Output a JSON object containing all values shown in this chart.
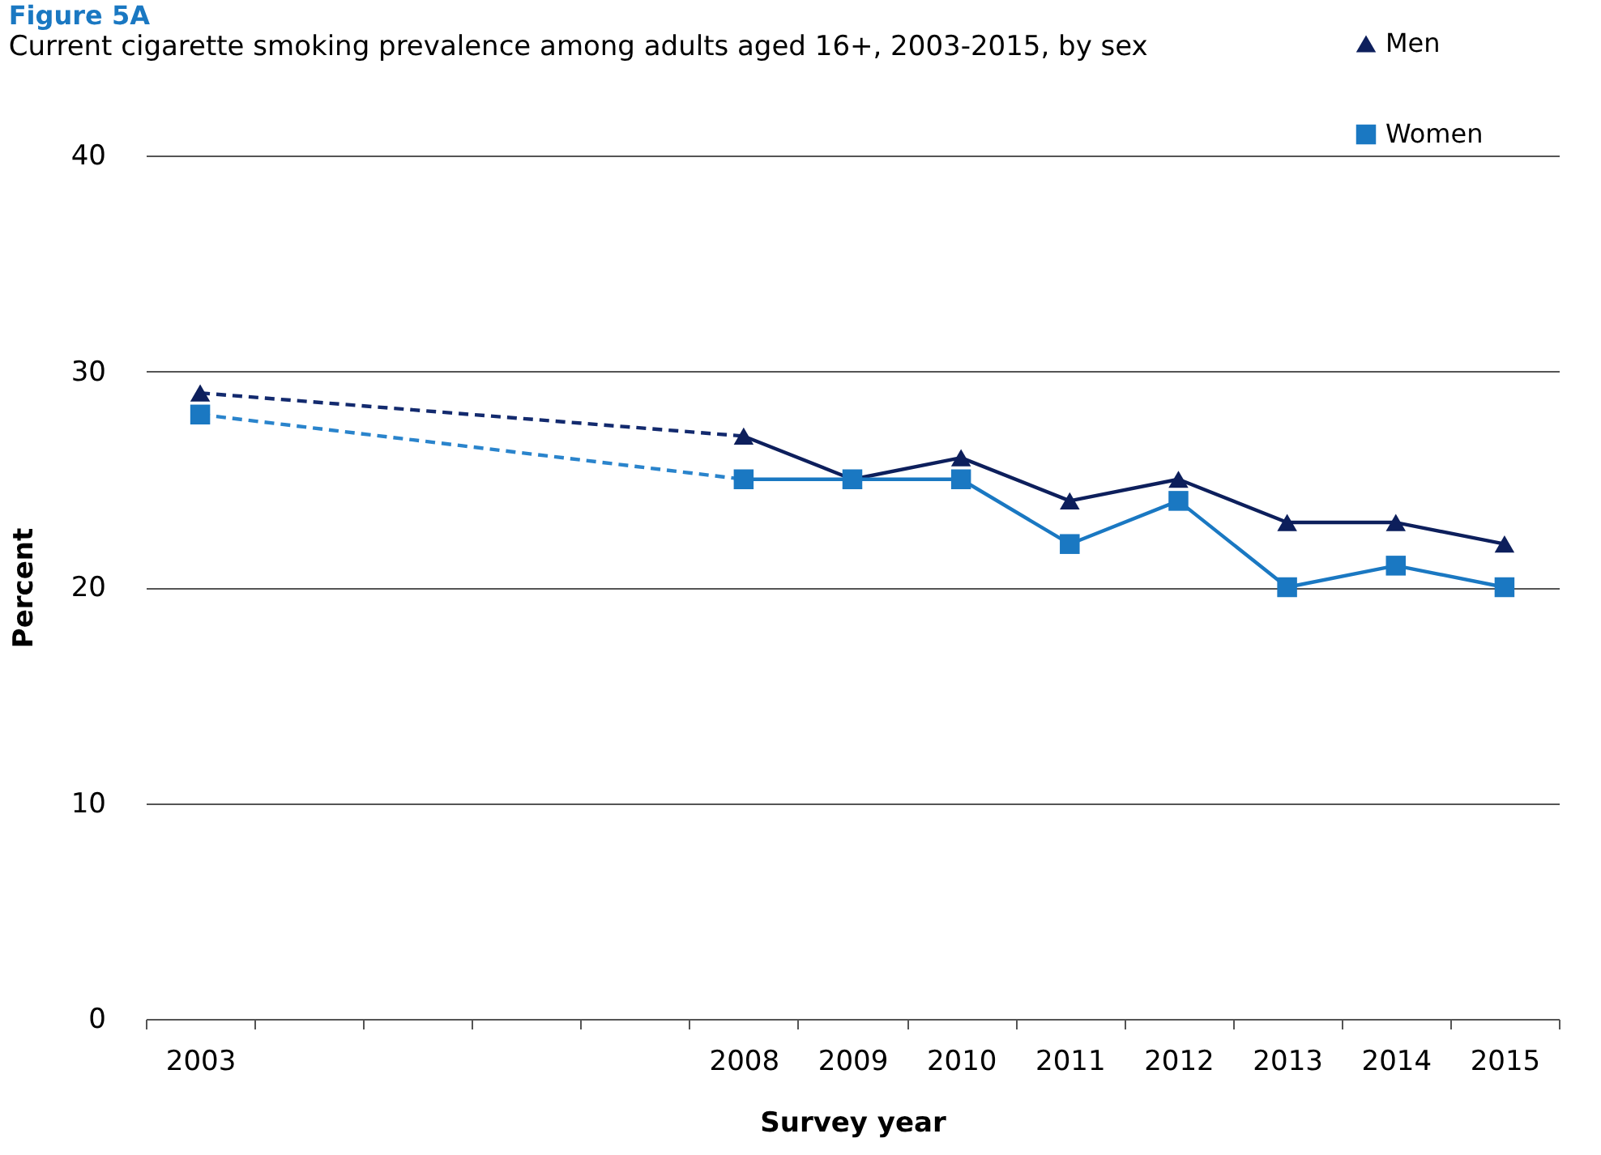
{
  "chart_data": {
    "type": "line",
    "title": "Figure 5A",
    "subtitle": "Current cigarette smoking prevalence among adults aged 16+, 2003-2015, by sex",
    "xlabel": "Survey year",
    "ylabel": "Percent",
    "categories": [
      "2003",
      null,
      null,
      null,
      null,
      "2008",
      "2009",
      "2010",
      "2011",
      "2012",
      "2013",
      "2014",
      "2015"
    ],
    "series": [
      {
        "name": "Men",
        "color": "#0d1f5c",
        "marker": "triangle",
        "line_style": "solid",
        "values": [
          29,
          null,
          null,
          null,
          null,
          27,
          25,
          26,
          24,
          25,
          23,
          23,
          22
        ]
      },
      {
        "name": "Women",
        "color": "#1a78c2",
        "marker": "square",
        "line_style": "solid",
        "values": [
          28,
          null,
          null,
          null,
          null,
          25,
          25,
          25,
          22,
          24,
          20,
          21,
          20
        ]
      },
      {
        "color": "#132a6e",
        "marker": "none",
        "line_style": "dashed",
        "values": [
          29,
          null,
          null,
          null,
          null,
          27,
          null,
          null,
          null,
          null,
          null,
          null,
          null
        ]
      },
      {
        "color": "#2a84cc",
        "marker": "none",
        "line_style": "dashed",
        "values": [
          28,
          null,
          null,
          null,
          null,
          25,
          null,
          null,
          null,
          null,
          null,
          null,
          null
        ]
      }
    ],
    "ylim": [
      0,
      40
    ],
    "yticks": [
      0,
      10,
      20,
      30,
      40
    ],
    "grid": "y",
    "legend": "top right"
  }
}
